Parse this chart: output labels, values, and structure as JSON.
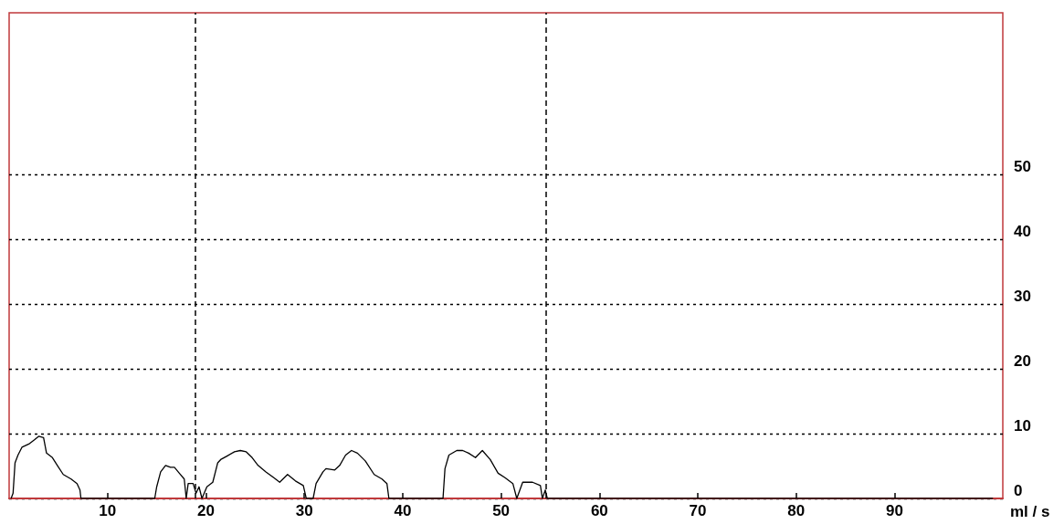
{
  "chart_data": {
    "type": "line",
    "ylabel": "ml / s",
    "x": [
      0.2,
      0.4,
      0.6,
      0.9,
      1.3,
      2.0,
      2.6,
      3.0,
      3.5,
      3.8,
      4.4,
      4.9,
      5.5,
      6.3,
      6.9,
      7.2,
      7.3,
      14.8,
      15.0,
      15.4,
      15.9,
      16.4,
      16.8,
      17.3,
      17.8,
      18.0,
      18.2,
      18.7,
      19.0,
      19.3,
      19.6,
      20.1,
      20.7,
      21.2,
      21.5,
      22.1,
      22.9,
      23.5,
      24.1,
      24.7,
      25.3,
      26.1,
      26.9,
      27.5,
      28.3,
      29.1,
      29.9,
      30.2,
      30.9,
      31.2,
      31.9,
      32.2,
      33.1,
      33.6,
      34.2,
      34.8,
      35.4,
      36.2,
      37.1,
      37.9,
      38.4,
      38.6,
      44.1,
      44.3,
      44.7,
      45.5,
      46.1,
      46.7,
      47.4,
      48.1,
      48.9,
      49.7,
      50.4,
      51.2,
      51.6,
      52.2,
      53.2,
      54.0,
      54.2,
      54.5,
      54.7,
      100
    ],
    "series": [
      {
        "color": "#000000",
        "values": [
          0,
          0.8,
          5.5,
          6.7,
          7.9,
          8.4,
          9.1,
          9.6,
          9.4,
          7.0,
          6.3,
          5.1,
          3.7,
          3.0,
          2.3,
          1.3,
          0,
          0,
          1.8,
          4.1,
          5.1,
          4.8,
          4.8,
          3.9,
          3.0,
          0,
          2.3,
          2.3,
          0.8,
          1.8,
          0,
          1.8,
          2.5,
          5.5,
          6.0,
          6.5,
          7.2,
          7.4,
          7.2,
          6.3,
          5.1,
          4.1,
          3.2,
          2.5,
          3.7,
          2.7,
          2.0,
          0,
          0,
          2.3,
          4.1,
          4.6,
          4.4,
          5.1,
          6.7,
          7.4,
          7.0,
          5.8,
          3.7,
          3.0,
          2.3,
          0,
          0,
          4.6,
          6.7,
          7.4,
          7.4,
          7.0,
          6.3,
          7.4,
          6.0,
          3.9,
          3.2,
          2.3,
          0,
          2.5,
          2.5,
          2.0,
          0,
          1.3,
          0,
          0
        ]
      }
    ],
    "xlim": [
      0,
      101
    ],
    "xticks": [
      10,
      20,
      30,
      40,
      50,
      60,
      70,
      80,
      90
    ],
    "ylim": [
      0,
      75
    ],
    "yticks": [
      0,
      10,
      20,
      30,
      40,
      50
    ],
    "grid": "y",
    "marker": "none",
    "line_style": "solid",
    "ref_lines": [
      {
        "axis": "x",
        "value": 18.9,
        "line_style": "dashed",
        "color": "#000000"
      },
      {
        "axis": "x",
        "value": 54.6,
        "line_style": "dashed",
        "color": "#000000"
      }
    ]
  }
}
